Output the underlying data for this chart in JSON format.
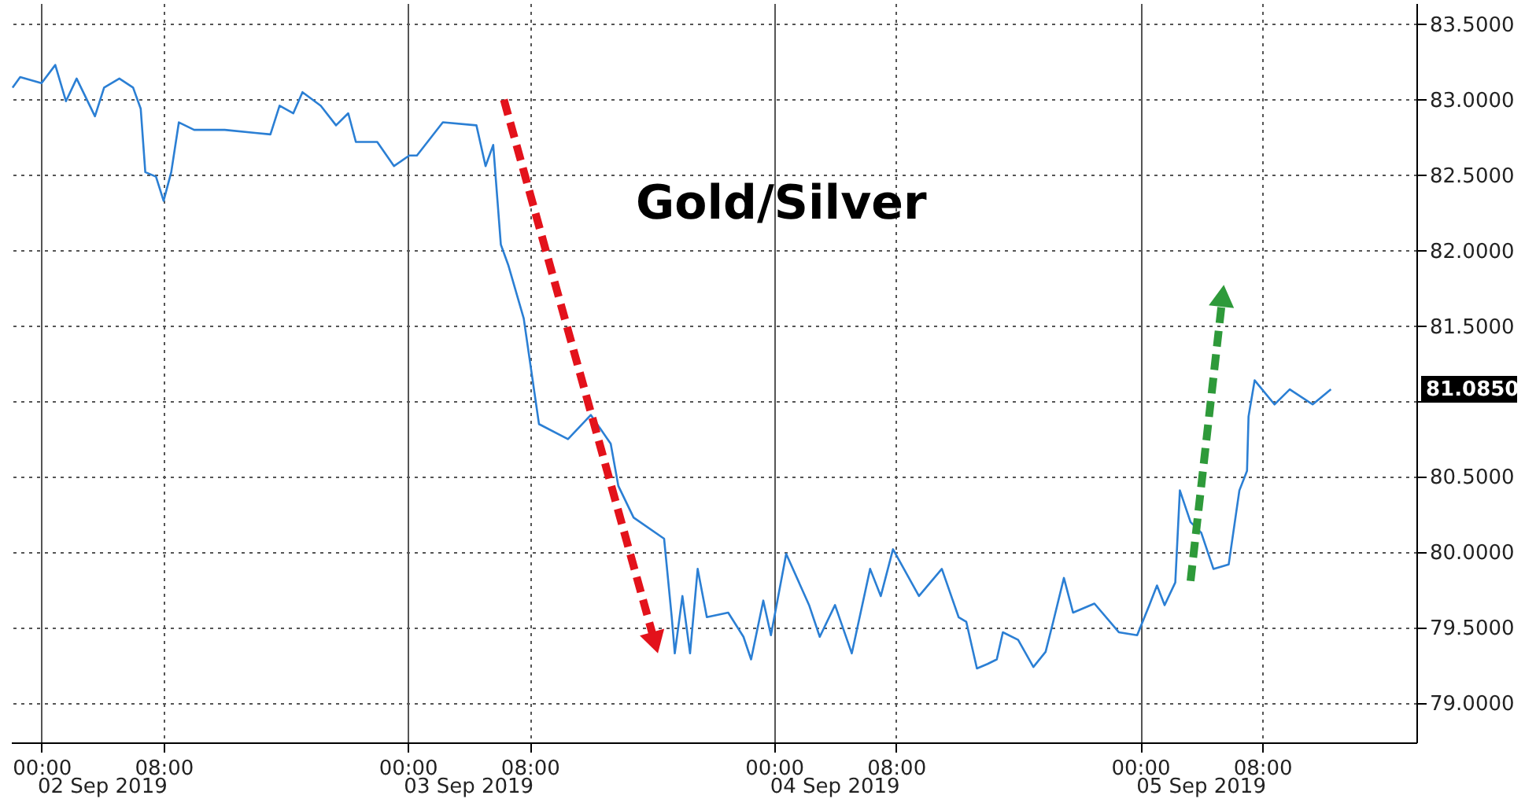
{
  "chart_data": {
    "type": "line",
    "title": "Gold/Silver",
    "x": [
      "2019-09-01T22:06",
      "2019-09-01T22:36",
      "2019-09-02T00:00",
      "2019-09-02T00:54",
      "2019-09-02T01:36",
      "2019-09-02T02:18",
      "2019-09-02T03:30",
      "2019-09-02T04:06",
      "2019-09-02T05:06",
      "2019-09-02T06:00",
      "2019-09-02T06:30",
      "2019-09-02T06:48",
      "2019-09-02T07:30",
      "2019-09-02T08:00",
      "2019-09-02T08:30",
      "2019-09-02T09:00",
      "2019-09-02T10:00",
      "2019-09-02T12:00",
      "2019-09-02T14:00",
      "2019-09-02T15:00",
      "2019-09-02T15:36",
      "2019-09-02T16:30",
      "2019-09-02T17:06",
      "2019-09-02T18:18",
      "2019-09-02T19:18",
      "2019-09-02T20:06",
      "2019-09-02T20:36",
      "2019-09-02T22:00",
      "2019-09-02T23:06",
      "2019-09-03T00:06",
      "2019-09-03T00:36",
      "2019-09-03T02:18",
      "2019-09-03T04:30",
      "2019-09-03T05:06",
      "2019-09-03T05:36",
      "2019-09-03T06:06",
      "2019-09-03T06:36",
      "2019-09-03T07:36",
      "2019-09-03T08:18",
      "2019-09-03T08:36",
      "2019-09-03T10:30",
      "2019-09-03T12:00",
      "2019-09-03T13:18",
      "2019-09-03T13:48",
      "2019-09-03T14:48",
      "2019-09-03T16:48",
      "2019-09-03T17:18",
      "2019-09-03T17:30",
      "2019-09-03T18:00",
      "2019-09-03T18:30",
      "2019-09-03T19:00",
      "2019-09-03T19:36",
      "2019-09-03T21:00",
      "2019-09-03T22:00",
      "2019-09-03T22:30",
      "2019-09-03T23:18",
      "2019-09-03T23:48",
      "2019-09-04T00:48",
      "2019-09-04T02:18",
      "2019-09-04T03:00",
      "2019-09-04T04:00",
      "2019-09-04T05:06",
      "2019-09-04T06:18",
      "2019-09-04T07:00",
      "2019-09-04T07:48",
      "2019-09-04T09:30",
      "2019-09-04T11:00",
      "2019-09-04T12:06",
      "2019-09-04T12:36",
      "2019-09-04T13:18",
      "2019-09-04T14:00",
      "2019-09-04T14:36",
      "2019-09-04T15:00",
      "2019-09-04T16:00",
      "2019-09-04T17:00",
      "2019-09-04T17:48",
      "2019-09-04T18:18",
      "2019-09-04T19:00",
      "2019-09-04T19:36",
      "2019-09-04T21:00",
      "2019-09-04T22:36",
      "2019-09-04T23:48",
      "2019-09-05T00:36",
      "2019-09-05T01:06",
      "2019-09-05T01:36",
      "2019-09-05T02:18",
      "2019-09-05T02:36",
      "2019-09-05T03:18",
      "2019-09-05T04:00",
      "2019-09-05T04:48",
      "2019-09-05T05:48",
      "2019-09-05T06:30",
      "2019-09-05T07:00",
      "2019-09-05T07:06",
      "2019-09-05T07:30",
      "2019-09-05T08:48",
      "2019-09-05T09:48",
      "2019-09-05T11:18",
      "2019-09-05T12:30"
    ],
    "series": [
      {
        "color": "#2b7fd4",
        "values": [
          83.08,
          83.15,
          83.11,
          83.23,
          82.99,
          83.14,
          82.89,
          83.08,
          83.14,
          83.08,
          82.94,
          82.52,
          82.49,
          82.33,
          82.52,
          82.85,
          82.8,
          82.8,
          82.78,
          82.77,
          82.96,
          82.91,
          83.05,
          82.96,
          82.83,
          82.91,
          82.72,
          82.72,
          82.56,
          82.63,
          82.63,
          82.85,
          82.83,
          82.56,
          82.7,
          82.04,
          81.9,
          81.55,
          81.06,
          80.85,
          80.75,
          80.91,
          80.72,
          80.44,
          80.23,
          80.09,
          79.57,
          79.33,
          79.71,
          79.33,
          79.89,
          79.57,
          79.6,
          79.44,
          79.29,
          79.68,
          79.45,
          79.99,
          79.65,
          79.44,
          79.65,
          79.33,
          79.89,
          79.71,
          80.02,
          79.71,
          79.89,
          79.57,
          79.54,
          79.23,
          79.26,
          79.29,
          79.47,
          79.42,
          79.24,
          79.34,
          79.54,
          79.83,
          79.6,
          79.66,
          79.47,
          79.45,
          79.65,
          79.78,
          79.65,
          79.8,
          80.41,
          80.2,
          80.13,
          79.89,
          79.92,
          80.41,
          80.54,
          80.9,
          81.14,
          80.98,
          81.08,
          80.98,
          81.08
        ]
      }
    ],
    "xlim": [
      "2019-09-01T22:00",
      "2019-09-05T18:06"
    ],
    "xticks": [
      {
        "value": "2019-09-02T00:00",
        "label": "00:00"
      },
      {
        "value": "2019-09-02T08:00",
        "label": "08:00"
      },
      {
        "value": "2019-09-03T00:00",
        "label": "00:00"
      },
      {
        "value": "2019-09-03T08:00",
        "label": "08:00"
      },
      {
        "value": "2019-09-04T00:00",
        "label": "00:00"
      },
      {
        "value": "2019-09-04T08:00",
        "label": "08:00"
      },
      {
        "value": "2019-09-05T00:00",
        "label": "00:00"
      },
      {
        "value": "2019-09-05T08:00",
        "label": "08:00"
      }
    ],
    "ylim": [
      78.74,
      83.64
    ],
    "yticks": [
      {
        "value": 79,
        "label": "79.0000"
      },
      {
        "value": 79.5,
        "label": "79.5000"
      },
      {
        "value": 80,
        "label": "80.0000"
      },
      {
        "value": 80.5,
        "label": "80.5000"
      },
      {
        "value": 81,
        "label": null
      },
      {
        "value": 81.5,
        "label": "81.5000"
      },
      {
        "value": 82,
        "label": "82.0000"
      },
      {
        "value": 82.5,
        "label": "82.5000"
      },
      {
        "value": 83,
        "label": "83.0000"
      },
      {
        "value": 83.5,
        "label": "83.5000"
      }
    ],
    "grid": true,
    "marker": "none",
    "line_style": "solid",
    "annotations": [
      "02 Sep 2019",
      "03 Sep 2019",
      "04 Sep 2019",
      "05 Sep 2019",
      "81.0850"
    ]
  }
}
